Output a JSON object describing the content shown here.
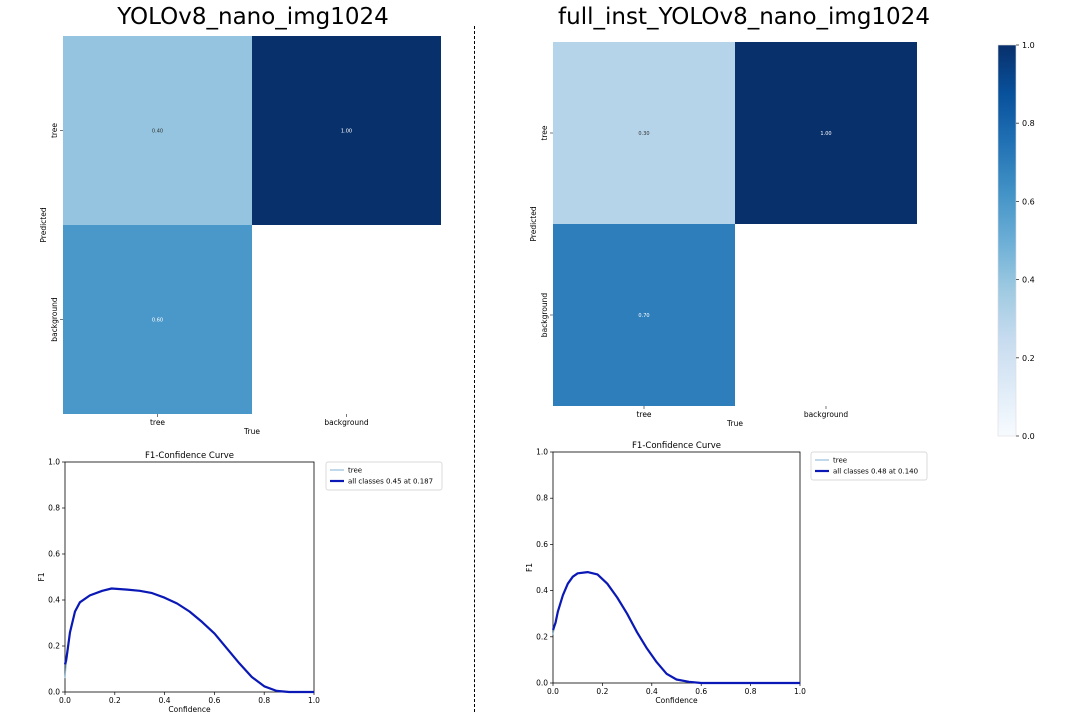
{
  "titles": {
    "left": "YOLOv8_nano_img1024",
    "right": "full_inst_YOLOv8_nano_img1024"
  },
  "chart_data": [
    {
      "type": "heatmap",
      "title": "YOLOv8_nano_img1024",
      "xlabel": "True",
      "ylabel": "Predicted",
      "x_categories": [
        "tree",
        "background"
      ],
      "y_categories": [
        "tree",
        "background"
      ],
      "cells": [
        {
          "row": "tree",
          "col": "tree",
          "value": 0.4,
          "label": "0.40"
        },
        {
          "row": "tree",
          "col": "background",
          "value": 1.0,
          "label": "1.00"
        },
        {
          "row": "background",
          "col": "tree",
          "value": 0.6,
          "label": "0.60"
        },
        {
          "row": "background",
          "col": "background",
          "value": null,
          "label": ""
        }
      ],
      "colormap": "Blues",
      "vlim": [
        0,
        1
      ]
    },
    {
      "type": "heatmap",
      "title": "full_inst_YOLOv8_nano_img1024",
      "xlabel": "True",
      "ylabel": "Predicted",
      "x_categories": [
        "tree",
        "background"
      ],
      "y_categories": [
        "tree",
        "background"
      ],
      "cells": [
        {
          "row": "tree",
          "col": "tree",
          "value": 0.3,
          "label": "0.30"
        },
        {
          "row": "tree",
          "col": "background",
          "value": 1.0,
          "label": "1.00"
        },
        {
          "row": "background",
          "col": "tree",
          "value": 0.7,
          "label": "0.70"
        },
        {
          "row": "background",
          "col": "background",
          "value": null,
          "label": ""
        }
      ],
      "colorbar": {
        "ticks": [
          0.0,
          0.2,
          0.4,
          0.6,
          0.8,
          1.0
        ],
        "tick_labels": [
          "0.0",
          "0.2",
          "0.4",
          "0.6",
          "0.8",
          "1.0"
        ]
      },
      "colormap": "Blues",
      "vlim": [
        0,
        1
      ]
    },
    {
      "type": "line",
      "title": "F1-Confidence Curve",
      "xlabel": "Confidence",
      "ylabel": "F1",
      "xlim": [
        0,
        1
      ],
      "ylim": [
        0,
        1
      ],
      "xticks": [
        "0.0",
        "0.2",
        "0.4",
        "0.6",
        "0.8",
        "1.0"
      ],
      "yticks": [
        "0.0",
        "0.2",
        "0.4",
        "0.6",
        "0.8",
        "1.0"
      ],
      "legend_position": "outside-right-top",
      "series": [
        {
          "name": "tree",
          "color": "#7fb3d5",
          "x": [
            0,
            0.005,
            0.01,
            0.02,
            0.04,
            0.06,
            0.1,
            0.15,
            0.187,
            0.25,
            0.3,
            0.35,
            0.4,
            0.45,
            0.5,
            0.55,
            0.6,
            0.65,
            0.7,
            0.75,
            0.8,
            0.85,
            0.9,
            0.95,
            1.0
          ],
          "y": [
            0.06,
            0.12,
            0.16,
            0.25,
            0.35,
            0.39,
            0.42,
            0.44,
            0.45,
            0.445,
            0.44,
            0.43,
            0.41,
            0.385,
            0.35,
            0.305,
            0.255,
            0.19,
            0.125,
            0.065,
            0.025,
            0.005,
            0.0,
            0.0,
            0.0
          ]
        },
        {
          "name": "all classes 0.45 at 0.187",
          "color": "#0a18b5",
          "x": [
            0,
            0.005,
            0.01,
            0.02,
            0.04,
            0.06,
            0.1,
            0.15,
            0.187,
            0.25,
            0.3,
            0.35,
            0.4,
            0.45,
            0.5,
            0.55,
            0.6,
            0.65,
            0.7,
            0.75,
            0.8,
            0.85,
            0.9,
            0.95,
            1.0
          ],
          "y": [
            0.12,
            0.14,
            0.18,
            0.26,
            0.35,
            0.39,
            0.42,
            0.44,
            0.45,
            0.445,
            0.44,
            0.43,
            0.41,
            0.385,
            0.35,
            0.305,
            0.255,
            0.19,
            0.125,
            0.065,
            0.025,
            0.005,
            0.0,
            0.0,
            0.0
          ]
        }
      ]
    },
    {
      "type": "line",
      "title": "F1-Confidence Curve",
      "xlabel": "Confidence",
      "ylabel": "F1",
      "xlim": [
        0,
        1
      ],
      "ylim": [
        0,
        1
      ],
      "xticks": [
        "0.0",
        "0.2",
        "0.4",
        "0.6",
        "0.8",
        "1.0"
      ],
      "yticks": [
        "0.0",
        "0.2",
        "0.4",
        "0.6",
        "0.8",
        "1.0"
      ],
      "legend_position": "outside-right-top",
      "series": [
        {
          "name": "tree",
          "color": "#7fb3d5",
          "x": [
            0,
            0.01,
            0.02,
            0.04,
            0.06,
            0.08,
            0.1,
            0.14,
            0.18,
            0.22,
            0.26,
            0.3,
            0.34,
            0.38,
            0.42,
            0.46,
            0.5,
            0.55,
            0.6,
            0.65,
            0.7,
            0.8,
            0.9,
            1.0
          ],
          "y": [
            0.21,
            0.26,
            0.31,
            0.38,
            0.43,
            0.46,
            0.475,
            0.48,
            0.47,
            0.43,
            0.37,
            0.3,
            0.22,
            0.15,
            0.09,
            0.04,
            0.015,
            0.005,
            0.0,
            0.0,
            0.0,
            0.0,
            0.0,
            0.0
          ]
        },
        {
          "name": "all classes 0.48 at 0.140",
          "color": "#0a18b5",
          "x": [
            0,
            0.01,
            0.02,
            0.04,
            0.06,
            0.08,
            0.1,
            0.14,
            0.18,
            0.22,
            0.26,
            0.3,
            0.34,
            0.38,
            0.42,
            0.46,
            0.5,
            0.55,
            0.6,
            0.65,
            0.7,
            0.8,
            0.9,
            1.0
          ],
          "y": [
            0.23,
            0.26,
            0.31,
            0.38,
            0.43,
            0.46,
            0.475,
            0.48,
            0.47,
            0.43,
            0.37,
            0.3,
            0.22,
            0.15,
            0.09,
            0.04,
            0.015,
            0.005,
            0.0,
            0.0,
            0.0,
            0.0,
            0.0,
            0.0
          ]
        }
      ]
    }
  ]
}
